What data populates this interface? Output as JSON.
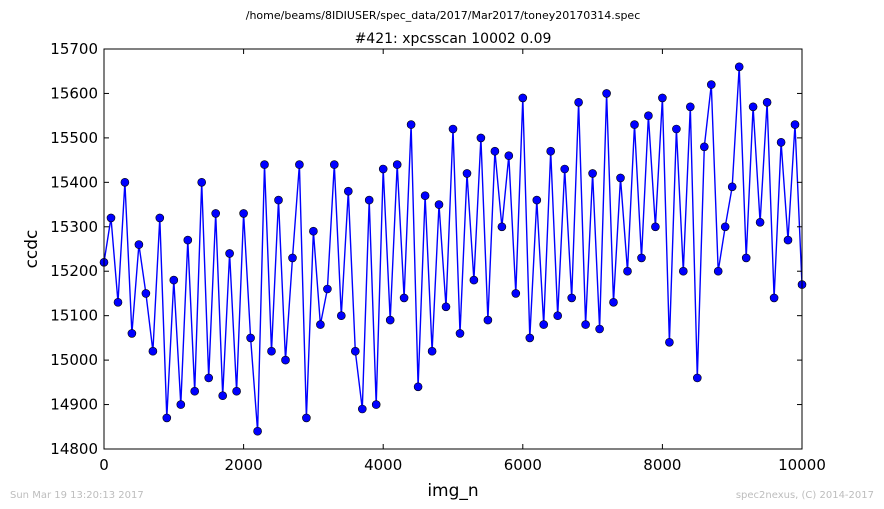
{
  "header": {
    "filepath": "/home/beams/8IDIUSER/spec_data/2017/Mar2017/toney20170314.spec"
  },
  "footer": {
    "timestamp": "Sun Mar 19 13:20:13 2017",
    "credit": "spec2nexus, (C) 2014-2017"
  },
  "chart_data": {
    "type": "line",
    "title": "#421: xpcsscan 10002 0.09",
    "xlabel": "img_n",
    "ylabel": "ccdc",
    "xlim": [
      0,
      10000
    ],
    "ylim": [
      14800,
      15700
    ],
    "x_ticks": [
      0,
      2000,
      4000,
      6000,
      8000,
      10000
    ],
    "y_ticks": [
      14800,
      14900,
      15000,
      15100,
      15200,
      15300,
      15400,
      15500,
      15600,
      15700
    ],
    "grid": false,
    "legend": "none",
    "color": "#0000ff",
    "marker": "circle",
    "series": [
      {
        "x": [
          0,
          100,
          200,
          300,
          400,
          500,
          600,
          700,
          800,
          900,
          1000,
          1100,
          1200,
          1300,
          1400,
          1500,
          1600,
          1700,
          1800,
          1900,
          2000,
          2100,
          2200,
          2300,
          2400,
          2500,
          2600,
          2700,
          2800,
          2900,
          3000,
          3100,
          3200,
          3300,
          3400,
          3500,
          3600,
          3700,
          3800,
          3900,
          4000,
          4100,
          4200,
          4300,
          4400,
          4500,
          4600,
          4700,
          4800,
          4900,
          5000,
          5100,
          5200,
          5300,
          5400,
          5500,
          5600,
          5700,
          5800,
          5900,
          6000,
          6100,
          6200,
          6300,
          6400,
          6500,
          6600,
          6700,
          6800,
          6900,
          7000,
          7100,
          7200,
          7300,
          7400,
          7500,
          7600,
          7700,
          7800,
          7900,
          8000,
          8100,
          8200,
          8300,
          8400,
          8500,
          8600,
          8700,
          8800,
          8900,
          9000,
          9100,
          9200,
          9300,
          9400,
          9500,
          9600,
          9700,
          9800,
          9900,
          10000
        ],
        "values": [
          15220,
          15320,
          15130,
          15400,
          15060,
          15260,
          15150,
          15020,
          15320,
          14870,
          15180,
          14900,
          15270,
          14930,
          15400,
          14960,
          15330,
          14920,
          15240,
          14930,
          15330,
          15050,
          14840,
          15440,
          15020,
          15360,
          15000,
          15230,
          15440,
          14870,
          15290,
          15080,
          15160,
          15440,
          15100,
          15380,
          15020,
          14890,
          15360,
          14900,
          15430,
          15090,
          15440,
          15140,
          15530,
          14940,
          15370,
          15020,
          15350,
          15120,
          15520,
          15060,
          15420,
          15180,
          15500,
          15090,
          15470,
          15300,
          15460,
          15150,
          15590,
          15050,
          15360,
          15080,
          15470,
          15100,
          15430,
          15140,
          15580,
          15080,
          15420,
          15070,
          15600,
          15130,
          15410,
          15200,
          15530,
          15230,
          15550,
          15300,
          15590,
          15040,
          15520,
          15200,
          15570,
          14960,
          15480,
          15620,
          15200,
          15300,
          15390,
          15660,
          15230,
          15570,
          15310,
          15580,
          15140,
          15490,
          15270,
          15530,
          15170
        ]
      }
    ]
  }
}
